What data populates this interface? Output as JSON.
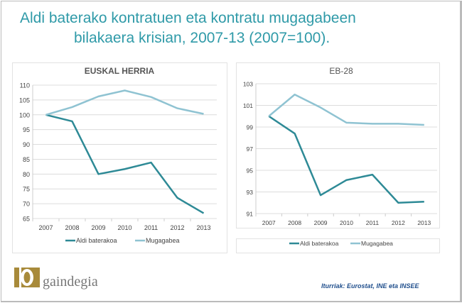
{
  "title_line1": "Aldi baterako kontratuen eta kontratu mugagabeen",
  "title_line2": "bilakaera krisian, 2007-13 (2007=100).",
  "source": "Iturriak: Eurostat, INE eta INSEE",
  "logo_text": "gaindegia",
  "colors": {
    "aldi": "#2e8a96",
    "muga": "#8fc3d2",
    "title": "#2f9aa8"
  },
  "chart_data": [
    {
      "type": "line",
      "title": "EUSKAL HERRIA",
      "categories": [
        "2007",
        "2008",
        "2009",
        "2010",
        "2011",
        "2012",
        "2013"
      ],
      "ylim": [
        65,
        110
      ],
      "yticks": [
        65,
        70,
        75,
        80,
        85,
        90,
        95,
        100,
        105,
        110
      ],
      "grid": true,
      "legend": "bottom",
      "series": [
        {
          "name": "Aldi baterakoa",
          "values": [
            100,
            97.8,
            80,
            81.7,
            83.9,
            72,
            66.8
          ]
        },
        {
          "name": "Mugagabea",
          "values": [
            100,
            102.6,
            106.2,
            108.2,
            106,
            102.2,
            100.3
          ]
        }
      ]
    },
    {
      "type": "line",
      "title": "EB-28",
      "categories": [
        "2007",
        "2008",
        "2009",
        "2010",
        "2011",
        "2012",
        "2013"
      ],
      "ylim": [
        91,
        103
      ],
      "yticks": [
        91,
        93,
        95,
        97,
        99,
        101,
        103
      ],
      "grid": true,
      "legend": "bottom",
      "series": [
        {
          "name": "Aldi baterakoa",
          "values": [
            100,
            98.4,
            92.7,
            94.1,
            94.6,
            92.0,
            92.1
          ]
        },
        {
          "name": "Mugagabea",
          "values": [
            100,
            102.0,
            100.8,
            99.4,
            99.3,
            99.3,
            99.2
          ]
        }
      ]
    }
  ]
}
